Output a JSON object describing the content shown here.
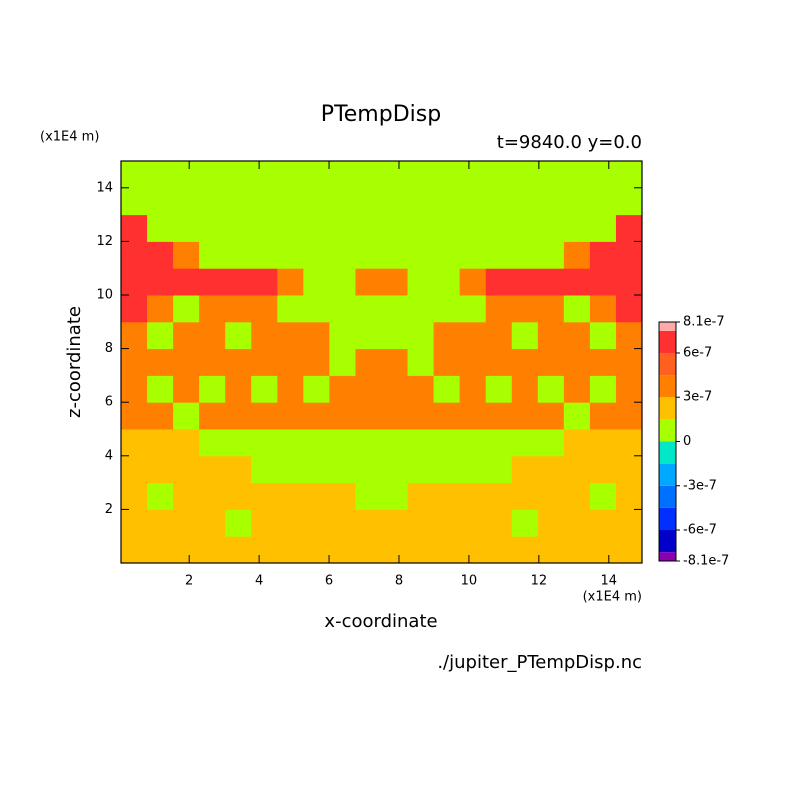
{
  "chart_data": {
    "type": "contour",
    "title": "PTempDisp",
    "subtitle": "t=9840.0 y=0.0",
    "x_label": "x-coordinate",
    "y_label": "z-coordinate",
    "x_unit": "(x1E4 m)",
    "y_unit": "(x1E4 m)",
    "footer": "./jupiter_PTempDisp.nc",
    "xlim": [
      0.05,
      14.95
    ],
    "ylim": [
      0,
      15
    ],
    "xticks": [
      2,
      4,
      6,
      8,
      10,
      12,
      14
    ],
    "yticks": [
      2,
      4,
      6,
      8,
      10,
      12,
      14
    ],
    "levels": [
      -8.1e-07,
      -7.5e-07,
      -6e-07,
      -4.5e-07,
      -3e-07,
      -1.5e-07,
      0,
      1.5e-07,
      3e-07,
      4.5e-07,
      6e-07,
      7.5e-07,
      8.1e-07
    ],
    "colors": [
      "#8a00b0",
      "#0000c8",
      "#0030ff",
      "#0070ff",
      "#00a8ff",
      "#00e8c8",
      "#a8ff00",
      "#ffc000",
      "#ff8000",
      "#ff6020",
      "#ff3030",
      "#ffaaaa"
    ],
    "colorbar_ticks": [
      8.1e-07,
      6e-07,
      3e-07,
      0,
      -3e-07,
      -6e-07,
      -8.1e-07
    ],
    "z": [
      [
        2e-07,
        2e-07,
        2e-07,
        2e-07,
        2e-07,
        2e-07,
        2e-07,
        2e-07,
        2e-07,
        2e-07,
        2e-07,
        2e-07,
        2e-07,
        2e-07,
        2e-07,
        2e-07,
        2e-07,
        2e-07,
        2e-07,
        2e-07
      ],
      [
        2e-07,
        2e-07,
        2e-07,
        2e-07,
        1e-07,
        2e-07,
        2e-07,
        2e-07,
        2e-07,
        2e-07,
        2e-07,
        2e-07,
        2e-07,
        2e-07,
        2e-07,
        1e-07,
        2e-07,
        2e-07,
        2e-07,
        2e-07
      ],
      [
        2e-07,
        1e-07,
        2e-07,
        2e-07,
        2e-07,
        2e-07,
        2e-07,
        2e-07,
        2e-07,
        1e-07,
        1e-07,
        2e-07,
        2e-07,
        2e-07,
        2e-07,
        2e-07,
        2e-07,
        2e-07,
        1e-07,
        2e-07
      ],
      [
        2e-07,
        2e-07,
        2e-07,
        2e-07,
        2e-07,
        1e-07,
        1e-07,
        1e-07,
        1e-07,
        1e-07,
        1e-07,
        1e-07,
        1e-07,
        1e-07,
        1e-07,
        2e-07,
        2e-07,
        2e-07,
        2e-07,
        2e-07
      ],
      [
        2e-07,
        2e-07,
        2e-07,
        1e-07,
        1e-07,
        1e-07,
        1e-07,
        1e-07,
        1e-07,
        1e-07,
        1e-07,
        1e-07,
        1e-07,
        1e-07,
        1e-07,
        1e-07,
        1e-07,
        2e-07,
        2e-07,
        2e-07
      ],
      [
        4e-07,
        4e-07,
        1e-07,
        4e-07,
        4e-07,
        4e-07,
        4e-07,
        4e-07,
        4e-07,
        4e-07,
        4e-07,
        4e-07,
        4e-07,
        4e-07,
        4e-07,
        4e-07,
        4e-07,
        1e-07,
        4e-07,
        4e-07
      ],
      [
        4e-07,
        1e-07,
        4e-07,
        1e-07,
        4e-07,
        1e-07,
        4e-07,
        1e-07,
        4e-07,
        4e-07,
        4e-07,
        4e-07,
        1e-07,
        4e-07,
        1e-07,
        4e-07,
        1e-07,
        4e-07,
        1e-07,
        4e-07
      ],
      [
        4e-07,
        4e-07,
        4e-07,
        4e-07,
        4e-07,
        4e-07,
        4e-07,
        4e-07,
        1e-07,
        4e-07,
        4e-07,
        1e-07,
        4e-07,
        4e-07,
        4e-07,
        4e-07,
        4e-07,
        4e-07,
        4e-07,
        4e-07
      ],
      [
        4e-07,
        1e-07,
        4e-07,
        4e-07,
        1e-07,
        4e-07,
        4e-07,
        4e-07,
        1e-07,
        1e-07,
        1e-07,
        1e-07,
        4e-07,
        4e-07,
        4e-07,
        1e-07,
        4e-07,
        4e-07,
        1e-07,
        4e-07
      ],
      [
        7e-07,
        4e-07,
        1e-07,
        4e-07,
        4e-07,
        4e-07,
        1e-07,
        1e-07,
        1e-07,
        1e-07,
        1e-07,
        1e-07,
        1e-07,
        1e-07,
        4e-07,
        4e-07,
        4e-07,
        1e-07,
        4e-07,
        7e-07
      ],
      [
        7e-07,
        7e-07,
        7e-07,
        7e-07,
        7e-07,
        7e-07,
        4e-07,
        1e-07,
        1e-07,
        4e-07,
        4e-07,
        1e-07,
        1e-07,
        4e-07,
        7e-07,
        7e-07,
        7e-07,
        7e-07,
        7e-07,
        7e-07
      ],
      [
        7e-07,
        7e-07,
        4e-07,
        1e-07,
        1e-07,
        1e-07,
        1e-07,
        1e-07,
        1e-07,
        1e-07,
        1e-07,
        1e-07,
        1e-07,
        1e-07,
        1e-07,
        1e-07,
        1e-07,
        4e-07,
        7e-07,
        7e-07
      ],
      [
        7e-07,
        1e-07,
        1e-07,
        1e-07,
        1e-07,
        1e-07,
        1e-07,
        1e-07,
        1e-07,
        1e-07,
        1e-07,
        1e-07,
        1e-07,
        1e-07,
        1e-07,
        1e-07,
        1e-07,
        1e-07,
        1e-07,
        7e-07
      ],
      [
        1e-07,
        1e-07,
        1e-07,
        1e-07,
        1e-07,
        1e-07,
        1e-07,
        1e-07,
        1e-07,
        1e-07,
        1e-07,
        1e-07,
        1e-07,
        1e-07,
        1e-07,
        1e-07,
        1e-07,
        1e-07,
        1e-07,
        1e-07
      ],
      [
        1e-07,
        1e-07,
        1e-07,
        1e-07,
        1e-07,
        1e-07,
        1e-07,
        1e-07,
        1e-07,
        1e-07,
        1e-07,
        1e-07,
        1e-07,
        1e-07,
        1e-07,
        1e-07,
        1e-07,
        1e-07,
        1e-07,
        1e-07
      ]
    ]
  }
}
